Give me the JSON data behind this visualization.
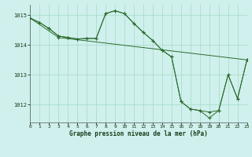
{
  "title": "Graphe pression niveau de la mer (hPa)",
  "bg_color": "#cff0ec",
  "grid_color": "#aaddcc",
  "line_color": "#2d6b2d",
  "xlim": [
    0,
    23
  ],
  "ylim": [
    1011.4,
    1015.35
  ],
  "yticks": [
    1012,
    1013,
    1014,
    1015
  ],
  "xticks": [
    0,
    1,
    2,
    3,
    4,
    5,
    6,
    7,
    8,
    9,
    10,
    11,
    12,
    13,
    14,
    15,
    16,
    17,
    18,
    19,
    20,
    21,
    22,
    23
  ],
  "series1_x": [
    0,
    1,
    2,
    3,
    4,
    5,
    6,
    7,
    8,
    9,
    10,
    11,
    12,
    13,
    14,
    15,
    16,
    17,
    18,
    19,
    20,
    21,
    22,
    23
  ],
  "series1_y": [
    1014.9,
    1014.75,
    1014.55,
    1014.3,
    1014.25,
    1014.2,
    1014.22,
    1014.22,
    1015.05,
    1015.15,
    1015.05,
    1014.72,
    1014.42,
    1014.15,
    1013.82,
    1013.6,
    1012.1,
    1011.85,
    1011.8,
    1011.75,
    1011.8,
    1013.0,
    1012.2,
    1013.5
  ],
  "series2_x": [
    0,
    1,
    2,
    3,
    4,
    5,
    6,
    7,
    8,
    9,
    10,
    11,
    12,
    13,
    14,
    15,
    16,
    17,
    18,
    19,
    20,
    21,
    22,
    23
  ],
  "series2_y": [
    1014.9,
    1014.75,
    1014.55,
    1014.3,
    1014.25,
    1014.2,
    1014.22,
    1014.22,
    1015.05,
    1015.15,
    1015.05,
    1014.72,
    1014.42,
    1014.15,
    1013.82,
    1013.6,
    1012.1,
    1011.85,
    1011.8,
    1011.55,
    1011.8,
    1013.0,
    1012.2,
    1013.5
  ],
  "series3_x": [
    0,
    3,
    23
  ],
  "series3_y": [
    1014.9,
    1014.25,
    1013.5
  ]
}
